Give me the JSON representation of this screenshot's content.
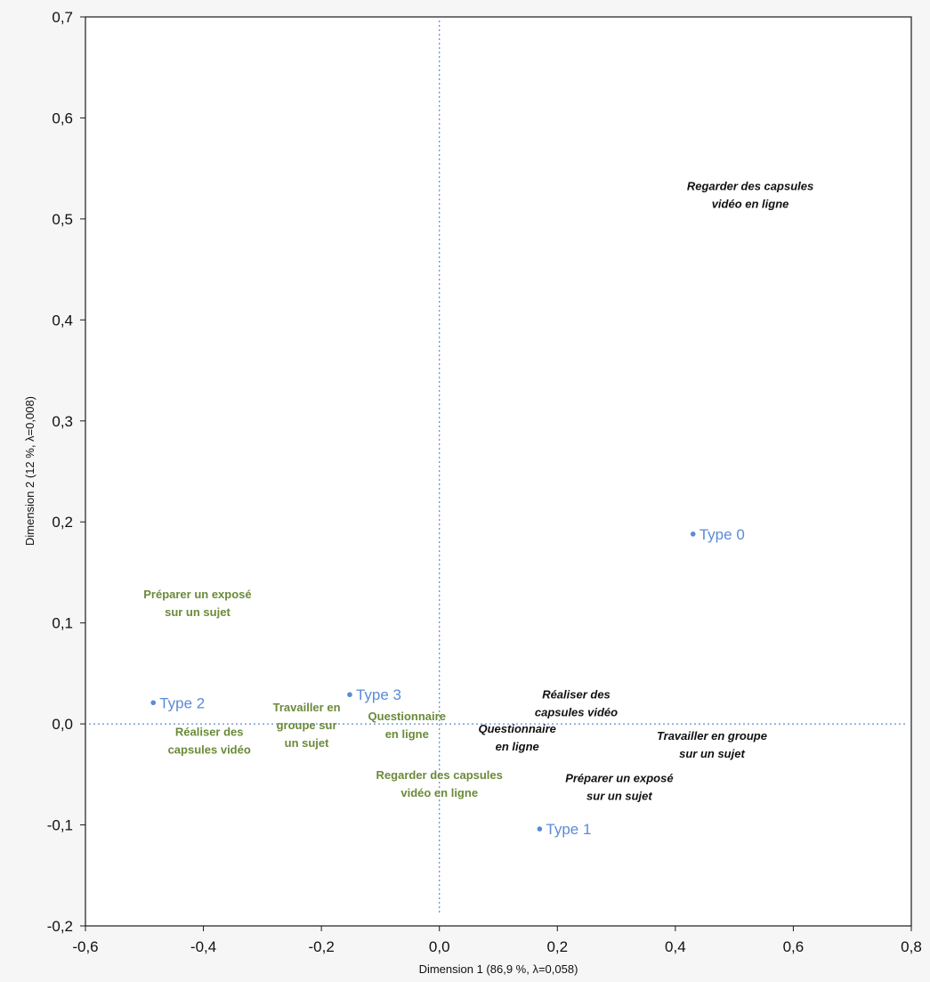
{
  "chart_data": {
    "type": "scatter",
    "xlabel": "Dimension 1  (86,9 %, λ=0,058)",
    "ylabel": "Dimension 2  (12 %, λ=0,008)",
    "xlim": [
      -0.6,
      0.8
    ],
    "ylim": [
      -0.2,
      0.7
    ],
    "x_ticks": [
      -0.6,
      -0.4,
      -0.2,
      0.0,
      0.2,
      0.4,
      0.6,
      0.8
    ],
    "x_tick_labels": [
      "-0,6",
      "-0,4",
      "-0,2",
      "0,0",
      "0,2",
      "0,4",
      "0,6",
      "0,8"
    ],
    "y_ticks": [
      0.7,
      0.6,
      0.5,
      0.4,
      0.3,
      0.2,
      0.1,
      0.0,
      -0.1,
      -0.2
    ],
    "y_tick_labels": [
      "0,7",
      "0,6",
      "0,5",
      "0,4",
      "0,3",
      "0,2",
      "0,1",
      "0,0",
      "-0,1",
      "-0,2"
    ],
    "grid": false,
    "reference_lines": {
      "x": 0.0,
      "y": 0.0,
      "style": "dotted",
      "color": "#5b8bd6"
    },
    "colors": {
      "points": "#5b8bd6",
      "green_labels": "#6b8a3a",
      "black_labels": "#111111"
    },
    "points": [
      {
        "label": "Type 0",
        "x": 0.43,
        "y": 0.188
      },
      {
        "label": "Type 1",
        "x": 0.17,
        "y": -0.104
      },
      {
        "label": "Type 2",
        "x": -0.485,
        "y": 0.021
      },
      {
        "label": "Type 3",
        "x": -0.152,
        "y": 0.029
      }
    ],
    "green_labels": [
      {
        "lines": [
          "Préparer un exposé",
          "sur un sujet"
        ],
        "x": -0.41,
        "y": 0.12
      },
      {
        "lines": [
          "Réaliser des",
          "capsules vidéo"
        ],
        "x": -0.39,
        "y": -0.016
      },
      {
        "lines": [
          "Travailler en",
          "groupe sur",
          "un sujet"
        ],
        "x": -0.225,
        "y": -0.001
      },
      {
        "lines": [
          "Questionnaire",
          "en ligne"
        ],
        "x": -0.055,
        "y": -0.001
      },
      {
        "lines": [
          "Regarder des capsules",
          "vidéo en ligne"
        ],
        "x": 0.0,
        "y": -0.059
      }
    ],
    "black_labels": [
      {
        "lines": [
          "Regarder des capsules",
          "vidéo en ligne"
        ],
        "x": 0.527,
        "y": 0.524
      },
      {
        "lines": [
          "Réaliser des",
          "capsules vidéo"
        ],
        "x": 0.232,
        "y": 0.021
      },
      {
        "lines": [
          "Questionnaire",
          "en ligne"
        ],
        "x": 0.132,
        "y": -0.013
      },
      {
        "lines": [
          "Travailler en groupe",
          "sur un sujet"
        ],
        "x": 0.462,
        "y": -0.02
      },
      {
        "lines": [
          "Préparer un exposé",
          "sur un sujet"
        ],
        "x": 0.305,
        "y": -0.062
      }
    ]
  }
}
